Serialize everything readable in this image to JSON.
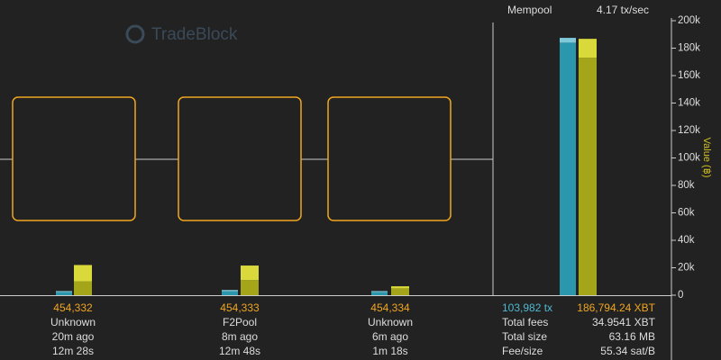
{
  "header": {
    "logo": "TradeBlock"
  },
  "mempool": {
    "title": "Mempool",
    "rate": "4.17 tx/sec",
    "tx": "103,982 tx",
    "value": "186,794.24 XBT",
    "stats": [
      [
        "Total fees",
        "34.9541 XBT"
      ],
      [
        "Total size",
        "63.16 MB"
      ],
      [
        "Fee/size",
        "55.34 sat/B"
      ]
    ]
  },
  "blocks": [
    {
      "height": "454,332",
      "miner": "Unknown",
      "ago": "20m ago",
      "duration": "12m 28s"
    },
    {
      "height": "454,333",
      "miner": "F2Pool",
      "ago": "8m ago",
      "duration": "12m 48s"
    },
    {
      "height": "454,334",
      "miner": "Unknown",
      "ago": "6m ago",
      "duration": "1m 18s"
    }
  ],
  "chart_data": {
    "type": "bar",
    "y_label": "Value (฿)",
    "ylim": [
      0,
      200000
    ],
    "yticks": [
      0,
      {
        "value": 20000,
        "label": "20k"
      },
      {
        "value": 40000,
        "label": "40k"
      },
      {
        "value": 60000,
        "label": "60k"
      },
      {
        "value": 80000,
        "label": "80k"
      },
      {
        "value": 100000,
        "label": "100k"
      },
      {
        "value": 120000,
        "label": "120k"
      },
      {
        "value": 140000,
        "label": "140k"
      },
      {
        "value": 160000,
        "label": "160k"
      },
      {
        "value": 180000,
        "label": "180k"
      },
      {
        "value": 200000,
        "label": "200k"
      }
    ],
    "colors": {
      "blue": [
        "#2a97ad",
        "#7fc9db"
      ],
      "yellow": [
        "#a5a51a",
        "#d9d93c"
      ]
    },
    "columns": [
      {
        "blue": [
          2200,
          800
        ],
        "yellow": [
          10000,
          12000
        ]
      },
      {
        "blue": [
          2800,
          1000
        ],
        "yellow": [
          11000,
          10600
        ]
      },
      {
        "blue": [
          2200,
          800
        ],
        "yellow": [
          5000,
          1500
        ]
      },
      {
        "blue": [
          184000,
          3500
        ],
        "yellow": [
          173000,
          13794
        ]
      }
    ]
  }
}
